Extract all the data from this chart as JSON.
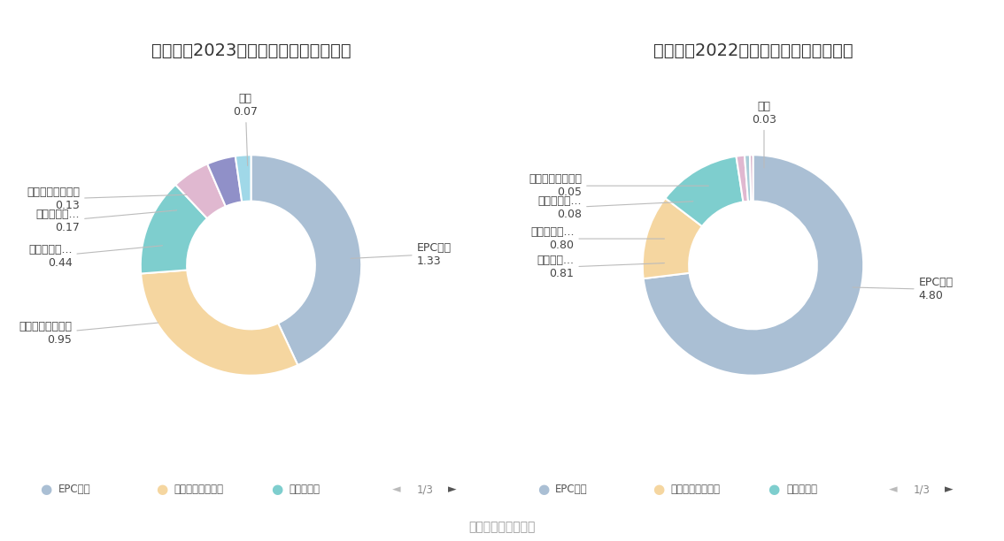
{
  "title_2023": "杭州园林2023年营业收入构成（亿元）",
  "title_2022": "杭州园林2022年营业收入构成（亿元）",
  "source_text": "数据来源：恒生聚源",
  "chart_2023": {
    "labels": [
      "EPC项目",
      "市政公共园林设计",
      "休闲度假园...",
      "生态湿地园...",
      "地产景观园林设计",
      "其他"
    ],
    "values": [
      1.33,
      0.95,
      0.44,
      0.17,
      0.13,
      0.07
    ]
  },
  "chart_2022": {
    "labels": [
      "EPC项目",
      "市政公共...",
      "休闲度假园...",
      "生态湿地园...",
      "地产景观园林设计",
      "其他"
    ],
    "values": [
      4.8,
      0.81,
      0.8,
      0.08,
      0.05,
      0.03
    ]
  },
  "legend_items": [
    {
      "label": "EPC项目",
      "color": "#aabfd4"
    },
    {
      "label": "市政公共园林设计",
      "color": "#f5d6a0"
    },
    {
      "label": "休闲度假园",
      "color": "#7ecece"
    }
  ],
  "donut_colors_2023": [
    "#aabfd4",
    "#f5d6a0",
    "#7ecece",
    "#e0b8d0",
    "#9090c8",
    "#a0d8e8"
  ],
  "donut_colors_2022": [
    "#aabfd4",
    "#f5d6a0",
    "#7ecece",
    "#e0b8d0",
    "#a8ccd8",
    "#d8b0c8"
  ],
  "background_color": "#ffffff",
  "title_fontsize": 14,
  "label_fontsize": 9,
  "source_fontsize": 10
}
